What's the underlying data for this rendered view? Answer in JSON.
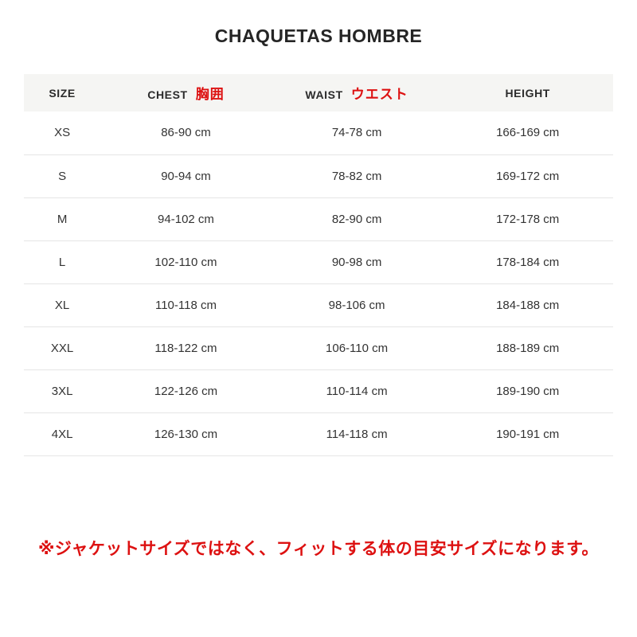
{
  "title": "CHAQUETAS HOMBRE",
  "table": {
    "headers": [
      {
        "label": "SIZE",
        "annotation": ""
      },
      {
        "label": "CHEST",
        "annotation": "胸囲"
      },
      {
        "label": "WAIST",
        "annotation": "ウエスト"
      },
      {
        "label": "HEIGHT",
        "annotation": ""
      }
    ],
    "rows": [
      [
        "XS",
        "86-90 cm",
        "74-78 cm",
        "166-169 cm"
      ],
      [
        "S",
        "90-94 cm",
        "78-82 cm",
        "169-172 cm"
      ],
      [
        "M",
        "94-102 cm",
        "82-90 cm",
        "172-178 cm"
      ],
      [
        "L",
        "102-110 cm",
        "90-98 cm",
        "178-184 cm"
      ],
      [
        "XL",
        "110-118 cm",
        "98-106 cm",
        "184-188 cm"
      ],
      [
        "XXL",
        "118-122 cm",
        "106-110 cm",
        "188-189 cm"
      ],
      [
        "3XL",
        "122-126 cm",
        "110-114 cm",
        "189-190 cm"
      ],
      [
        "4XL",
        "126-130 cm",
        "114-118 cm",
        "190-191 cm"
      ]
    ]
  },
  "note": "※ジャケットサイズではなく、フィットする体の目安サイズになります。",
  "colors": {
    "accent_red": "#dd1111",
    "header_bg": "#f5f5f3",
    "text": "#333333",
    "border": "#e5e5e5"
  }
}
